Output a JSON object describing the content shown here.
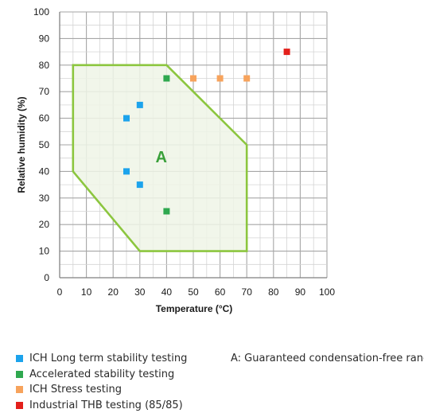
{
  "chart_data": {
    "type": "scatter",
    "title": "",
    "xlabel": "Temperature (°C)",
    "ylabel": "Relative humidity (%)",
    "xlim": [
      0,
      100
    ],
    "ylim": [
      0,
      100
    ],
    "xticks": [
      "0",
      "10",
      "20",
      "30",
      "40",
      "50",
      "60",
      "70",
      "80",
      "90",
      "100"
    ],
    "yticks": [
      "0",
      "10",
      "20",
      "30",
      "40",
      "50",
      "60",
      "70",
      "80",
      "90",
      "100"
    ],
    "grid": true,
    "region": {
      "label": "A",
      "description": "A: Guaranteed condensation-free range",
      "polygon": [
        [
          5,
          80
        ],
        [
          40,
          80
        ],
        [
          70,
          50
        ],
        [
          70,
          10
        ],
        [
          30,
          10
        ],
        [
          5,
          40
        ]
      ],
      "fill_color": "#eef5e6",
      "stroke_color": "#8cc63f",
      "label_color": "#3aa03a",
      "label_position": [
        38,
        45.5
      ]
    },
    "series": [
      {
        "name": "ICH Long term stability testing",
        "color": "#1ca3ec",
        "points": [
          [
            25,
            60
          ],
          [
            30,
            65
          ],
          [
            25,
            40
          ],
          [
            30,
            35
          ]
        ]
      },
      {
        "name": "Accelerated stability testing",
        "color": "#2fa84f",
        "points": [
          [
            40,
            75
          ],
          [
            40,
            25
          ]
        ]
      },
      {
        "name": "ICH Stress testing",
        "color": "#f7a35c",
        "points": [
          [
            50,
            75
          ],
          [
            60,
            75
          ],
          [
            70,
            75
          ]
        ]
      },
      {
        "name": "Industrial THB testing (85/85)",
        "color": "#e3201b",
        "points": [
          [
            85,
            85
          ]
        ]
      }
    ]
  }
}
